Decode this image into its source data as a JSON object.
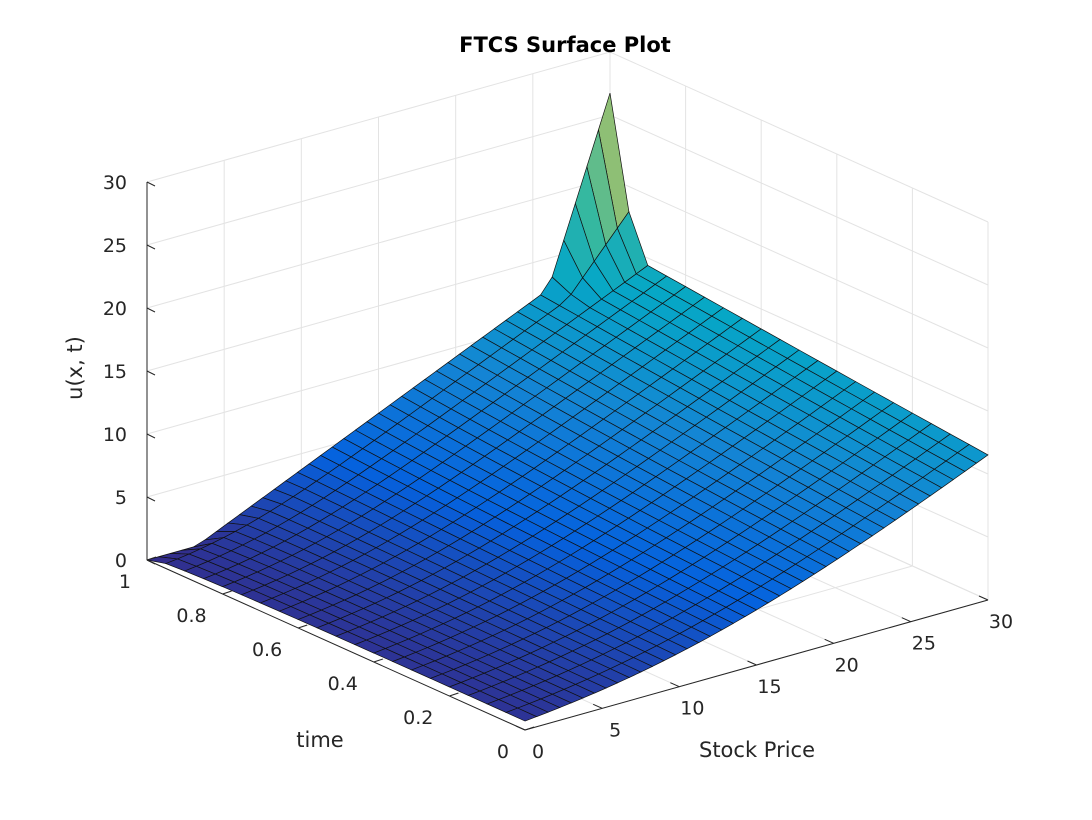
{
  "chart_data": {
    "type": "surface",
    "title": "FTCS Surface Plot",
    "xlabel": "Stock Price",
    "ylabel": "time",
    "zlabel": "u(x, t)",
    "xlim": [
      0,
      30
    ],
    "ylim": [
      0,
      1
    ],
    "zlim": [
      0,
      30
    ],
    "xticks": [
      "0",
      "5",
      "10",
      "15",
      "20",
      "25",
      "30"
    ],
    "yticks": [
      "0",
      "0.2",
      "0.4",
      "0.6",
      "0.8",
      "1"
    ],
    "zticks": [
      "0",
      "5",
      "10",
      "15",
      "20",
      "25",
      "30"
    ],
    "colormap": "parula",
    "grid": true,
    "view": "3d-default",
    "surface": {
      "description_free": true,
      "x": [
        0,
        0.75,
        1.5,
        2.25,
        3,
        3.75,
        4.5,
        5.25,
        6,
        6.75,
        7.5,
        8.25,
        9,
        9.75,
        10.5,
        11.25,
        12,
        12.75,
        13.5,
        14.25,
        15,
        15.75,
        16.5,
        17.25,
        18,
        18.75,
        19.5,
        20.25,
        21,
        21.75,
        22.5,
        23.25,
        24,
        24.75,
        25.5,
        26.25,
        27,
        27.75,
        28.5,
        29.25,
        30
      ],
      "t": [
        0,
        0.05,
        0.1,
        0.15,
        0.2,
        0.25,
        0.3,
        0.35,
        0.4,
        0.45,
        0.5,
        0.55,
        0.6,
        0.65,
        0.7,
        0.75,
        0.8,
        0.85,
        0.9,
        0.95,
        1
      ],
      "strike": 0,
      "max_value": 30,
      "tail_peak_x": 30,
      "tail_peak_t": 1,
      "tail_peak_value": 29.5
    }
  }
}
